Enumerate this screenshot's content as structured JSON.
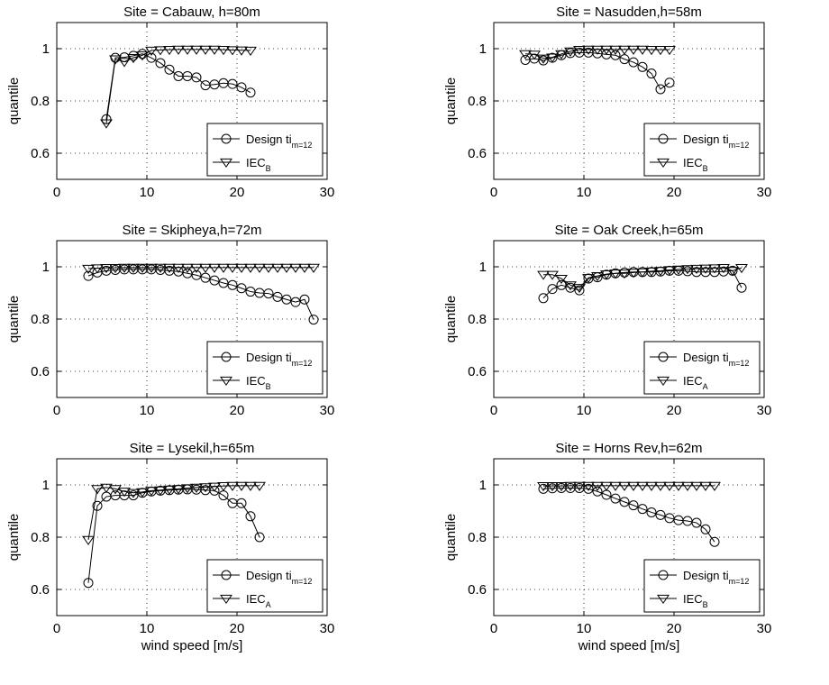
{
  "chart_data": [
    {
      "type": "line",
      "title": "Site = Cabauw, h=80m",
      "xlabel": "",
      "ylabel": "quantile",
      "xlim": [
        0,
        30
      ],
      "ylim": [
        0.5,
        1.1
      ],
      "xticks": [
        "0",
        "10",
        "20",
        "30"
      ],
      "yticks": [
        "0.6",
        "0.8",
        "1"
      ],
      "grid": true,
      "legend_position": "bottom-right",
      "legend": [
        {
          "label": "Design ti",
          "sub": "m=12",
          "marker": "circle"
        },
        {
          "label": "IEC",
          "sub": "B",
          "marker": "triangle-down"
        }
      ],
      "series": [
        {
          "name": "Design ti_m=12",
          "marker": "circle",
          "x": [
            5.5,
            6.5,
            7.5,
            8.5,
            9.5,
            10.5,
            11.5,
            12.5,
            13.5,
            14.5,
            15.5,
            16.5,
            17.5,
            18.5,
            19.5,
            20.5,
            21.5
          ],
          "y": [
            0.73,
            0.965,
            0.967,
            0.973,
            0.98,
            0.965,
            0.945,
            0.92,
            0.895,
            0.895,
            0.89,
            0.86,
            0.863,
            0.868,
            0.865,
            0.852,
            0.832
          ]
        },
        {
          "name": "IEC_B",
          "marker": "triangle-down",
          "x": [
            5.5,
            6.5,
            7.5,
            8.5,
            9.5,
            10.5,
            11.5,
            12.5,
            13.5,
            14.5,
            15.5,
            16.5,
            17.5,
            18.5,
            19.5,
            20.5,
            21.5
          ],
          "y": [
            0.715,
            0.96,
            0.95,
            0.965,
            0.975,
            0.993,
            0.995,
            0.996,
            0.997,
            0.997,
            0.997,
            0.997,
            0.997,
            0.996,
            0.995,
            0.994,
            0.993
          ]
        }
      ]
    },
    {
      "type": "line",
      "title": "Site = Nasudden,h=58m",
      "xlabel": "",
      "ylabel": "quantile",
      "xlim": [
        0,
        30
      ],
      "ylim": [
        0.5,
        1.1
      ],
      "xticks": [
        "0",
        "10",
        "20",
        "30"
      ],
      "yticks": [
        "0.6",
        "0.8",
        "1"
      ],
      "grid": true,
      "legend_position": "bottom-right",
      "legend": [
        {
          "label": "Design ti",
          "sub": "m=12",
          "marker": "circle"
        },
        {
          "label": "IEC",
          "sub": "B",
          "marker": "triangle-down"
        }
      ],
      "series": [
        {
          "name": "Design ti_m=12",
          "marker": "circle",
          "x": [
            3.5,
            4.5,
            5.5,
            6.5,
            7.5,
            8.5,
            9.5,
            10.5,
            11.5,
            12.5,
            13.5,
            14.5,
            15.5,
            16.5,
            17.5,
            18.5,
            19.5
          ],
          "y": [
            0.957,
            0.962,
            0.955,
            0.965,
            0.975,
            0.983,
            0.985,
            0.985,
            0.982,
            0.978,
            0.975,
            0.96,
            0.948,
            0.93,
            0.905,
            0.845,
            0.87
          ]
        },
        {
          "name": "IEC_B",
          "marker": "triangle-down",
          "x": [
            3.5,
            4.5,
            5.5,
            6.5,
            7.5,
            8.5,
            9.5,
            10.5,
            11.5,
            12.5,
            13.5,
            14.5,
            15.5,
            16.5,
            17.5,
            18.5,
            19.5
          ],
          "y": [
            0.98,
            0.978,
            0.963,
            0.967,
            0.98,
            0.99,
            0.996,
            0.997,
            0.997,
            0.997,
            0.997,
            0.997,
            0.997,
            0.997,
            0.996,
            0.996,
            0.996
          ]
        }
      ]
    },
    {
      "type": "line",
      "title": "Site = Skipheya,h=72m",
      "xlabel": "",
      "ylabel": "quantile",
      "xlim": [
        0,
        30
      ],
      "ylim": [
        0.5,
        1.1
      ],
      "xticks": [
        "0",
        "10",
        "20",
        "30"
      ],
      "yticks": [
        "0.6",
        "0.8",
        "1"
      ],
      "grid": true,
      "legend_position": "bottom-right",
      "legend": [
        {
          "label": "Design ti",
          "sub": "m=12",
          "marker": "circle"
        },
        {
          "label": "IEC",
          "sub": "B",
          "marker": "triangle-down"
        }
      ],
      "series": [
        {
          "name": "Design ti_m=12",
          "marker": "circle",
          "x": [
            3.5,
            4.5,
            5.5,
            6.5,
            7.5,
            8.5,
            9.5,
            10.5,
            11.5,
            12.5,
            13.5,
            14.5,
            15.5,
            16.5,
            17.5,
            18.5,
            19.5,
            20.5,
            21.5,
            22.5,
            23.5,
            24.5,
            25.5,
            26.5,
            27.5,
            28.5
          ],
          "y": [
            0.965,
            0.978,
            0.985,
            0.988,
            0.99,
            0.99,
            0.99,
            0.99,
            0.988,
            0.985,
            0.982,
            0.975,
            0.968,
            0.958,
            0.948,
            0.938,
            0.93,
            0.918,
            0.905,
            0.9,
            0.898,
            0.885,
            0.875,
            0.865,
            0.875,
            0.798
          ]
        },
        {
          "name": "IEC_B",
          "marker": "triangle-down",
          "x": [
            3.5,
            4.5,
            5.5,
            6.5,
            7.5,
            8.5,
            9.5,
            10.5,
            11.5,
            12.5,
            13.5,
            14.5,
            15.5,
            16.5,
            17.5,
            18.5,
            19.5,
            20.5,
            21.5,
            22.5,
            23.5,
            24.5,
            25.5,
            26.5,
            27.5,
            28.5
          ],
          "y": [
            0.993,
            0.995,
            0.996,
            0.996,
            0.997,
            0.997,
            0.997,
            0.997,
            0.997,
            0.997,
            0.997,
            0.997,
            0.997,
            0.997,
            0.997,
            0.997,
            0.997,
            0.997,
            0.997,
            0.997,
            0.997,
            0.997,
            0.997,
            0.997,
            0.997,
            0.997
          ]
        }
      ]
    },
    {
      "type": "line",
      "title": "Site = Oak Creek,h=65m",
      "xlabel": "",
      "ylabel": "quantile",
      "xlim": [
        0,
        30
      ],
      "ylim": [
        0.5,
        1.1
      ],
      "xticks": [
        "0",
        "10",
        "20",
        "30"
      ],
      "yticks": [
        "0.6",
        "0.8",
        "1"
      ],
      "grid": true,
      "legend_position": "bottom-right",
      "legend": [
        {
          "label": "Design ti",
          "sub": "m=12",
          "marker": "circle"
        },
        {
          "label": "IEC",
          "sub": "A",
          "marker": "triangle-down"
        }
      ],
      "series": [
        {
          "name": "Design ti_m=12",
          "marker": "circle",
          "x": [
            5.5,
            6.5,
            7.5,
            8.5,
            9.5,
            10.5,
            11.5,
            12.5,
            13.5,
            14.5,
            15.5,
            16.5,
            17.5,
            18.5,
            19.5,
            20.5,
            21.5,
            22.5,
            23.5,
            24.5,
            25.5,
            26.5,
            27.5
          ],
          "y": [
            0.88,
            0.915,
            0.93,
            0.92,
            0.91,
            0.955,
            0.96,
            0.97,
            0.975,
            0.978,
            0.98,
            0.98,
            0.98,
            0.982,
            0.985,
            0.985,
            0.983,
            0.98,
            0.98,
            0.98,
            0.982,
            0.985,
            0.92
          ]
        },
        {
          "name": "IEC_A",
          "marker": "triangle-down",
          "x": [
            5.5,
            6.5,
            7.5,
            8.5,
            9.5,
            10.5,
            11.5,
            12.5,
            13.5,
            14.5,
            15.5,
            16.5,
            17.5,
            18.5,
            19.5,
            20.5,
            21.5,
            22.5,
            23.5,
            24.5,
            25.5,
            26.5,
            27.5
          ],
          "y": [
            0.97,
            0.97,
            0.955,
            0.93,
            0.92,
            0.958,
            0.965,
            0.972,
            0.975,
            0.975,
            0.978,
            0.98,
            0.983,
            0.985,
            0.988,
            0.99,
            0.992,
            0.993,
            0.994,
            0.995,
            0.996,
            0.985,
            0.996
          ]
        }
      ]
    },
    {
      "type": "line",
      "title": "Site = Lysekil,h=65m",
      "xlabel": "wind speed [m/s]",
      "ylabel": "quantile",
      "xlim": [
        0,
        30
      ],
      "ylim": [
        0.5,
        1.1
      ],
      "xticks": [
        "0",
        "10",
        "20",
        "30"
      ],
      "yticks": [
        "0.6",
        "0.8",
        "1"
      ],
      "grid": true,
      "legend_position": "bottom-right",
      "legend": [
        {
          "label": "Design ti",
          "sub": "m=12",
          "marker": "circle"
        },
        {
          "label": "IEC",
          "sub": "A",
          "marker": "triangle-down"
        }
      ],
      "series": [
        {
          "name": "Design ti_m=12",
          "marker": "circle",
          "x": [
            3.5,
            4.5,
            5.5,
            6.5,
            7.5,
            8.5,
            9.5,
            10.5,
            11.5,
            12.5,
            13.5,
            14.5,
            15.5,
            16.5,
            17.5,
            18.5,
            19.5,
            20.5,
            21.5,
            22.5
          ],
          "y": [
            0.625,
            0.92,
            0.955,
            0.96,
            0.96,
            0.96,
            0.97,
            0.975,
            0.978,
            0.98,
            0.982,
            0.983,
            0.982,
            0.98,
            0.978,
            0.96,
            0.93,
            0.93,
            0.88,
            0.8
          ]
        },
        {
          "name": "IEC_A",
          "marker": "triangle-down",
          "x": [
            3.5,
            4.5,
            5.5,
            6.5,
            7.5,
            8.5,
            9.5,
            10.5,
            11.5,
            12.5,
            13.5,
            14.5,
            15.5,
            16.5,
            17.5,
            18.5,
            19.5,
            20.5,
            21.5,
            22.5
          ],
          "y": [
            0.79,
            0.985,
            0.99,
            0.985,
            0.975,
            0.97,
            0.973,
            0.978,
            0.98,
            0.983,
            0.985,
            0.988,
            0.99,
            0.992,
            0.994,
            0.996,
            0.997,
            0.997,
            0.997,
            0.997
          ]
        }
      ]
    },
    {
      "type": "line",
      "title": "Site = Horns Rev,h=62m",
      "xlabel": "wind speed [m/s]",
      "ylabel": "quantile",
      "xlim": [
        0,
        30
      ],
      "ylim": [
        0.5,
        1.1
      ],
      "xticks": [
        "0",
        "10",
        "20",
        "30"
      ],
      "yticks": [
        "0.6",
        "0.8",
        "1"
      ],
      "grid": true,
      "legend_position": "bottom-right",
      "legend": [
        {
          "label": "Design ti",
          "sub": "m=12",
          "marker": "circle"
        },
        {
          "label": "IEC",
          "sub": "B",
          "marker": "triangle-down"
        }
      ],
      "series": [
        {
          "name": "Design ti_m=12",
          "marker": "circle",
          "x": [
            5.5,
            6.5,
            7.5,
            8.5,
            9.5,
            10.5,
            11.5,
            12.5,
            13.5,
            14.5,
            15.5,
            16.5,
            17.5,
            18.5,
            19.5,
            20.5,
            21.5,
            22.5,
            23.5,
            24.5
          ],
          "y": [
            0.985,
            0.987,
            0.988,
            0.988,
            0.988,
            0.985,
            0.975,
            0.962,
            0.948,
            0.935,
            0.922,
            0.908,
            0.895,
            0.885,
            0.873,
            0.865,
            0.862,
            0.855,
            0.83,
            0.782
          ]
        },
        {
          "name": "IEC_B",
          "marker": "triangle-down",
          "x": [
            5.5,
            6.5,
            7.5,
            8.5,
            9.5,
            10.5,
            11.5,
            12.5,
            13.5,
            14.5,
            15.5,
            16.5,
            17.5,
            18.5,
            19.5,
            20.5,
            21.5,
            22.5,
            23.5,
            24.5
          ],
          "y": [
            0.996,
            0.996,
            0.996,
            0.997,
            0.997,
            0.997,
            0.997,
            0.997,
            0.997,
            0.997,
            0.997,
            0.997,
            0.997,
            0.997,
            0.997,
            0.997,
            0.997,
            0.997,
            0.997,
            0.997
          ]
        }
      ]
    }
  ]
}
